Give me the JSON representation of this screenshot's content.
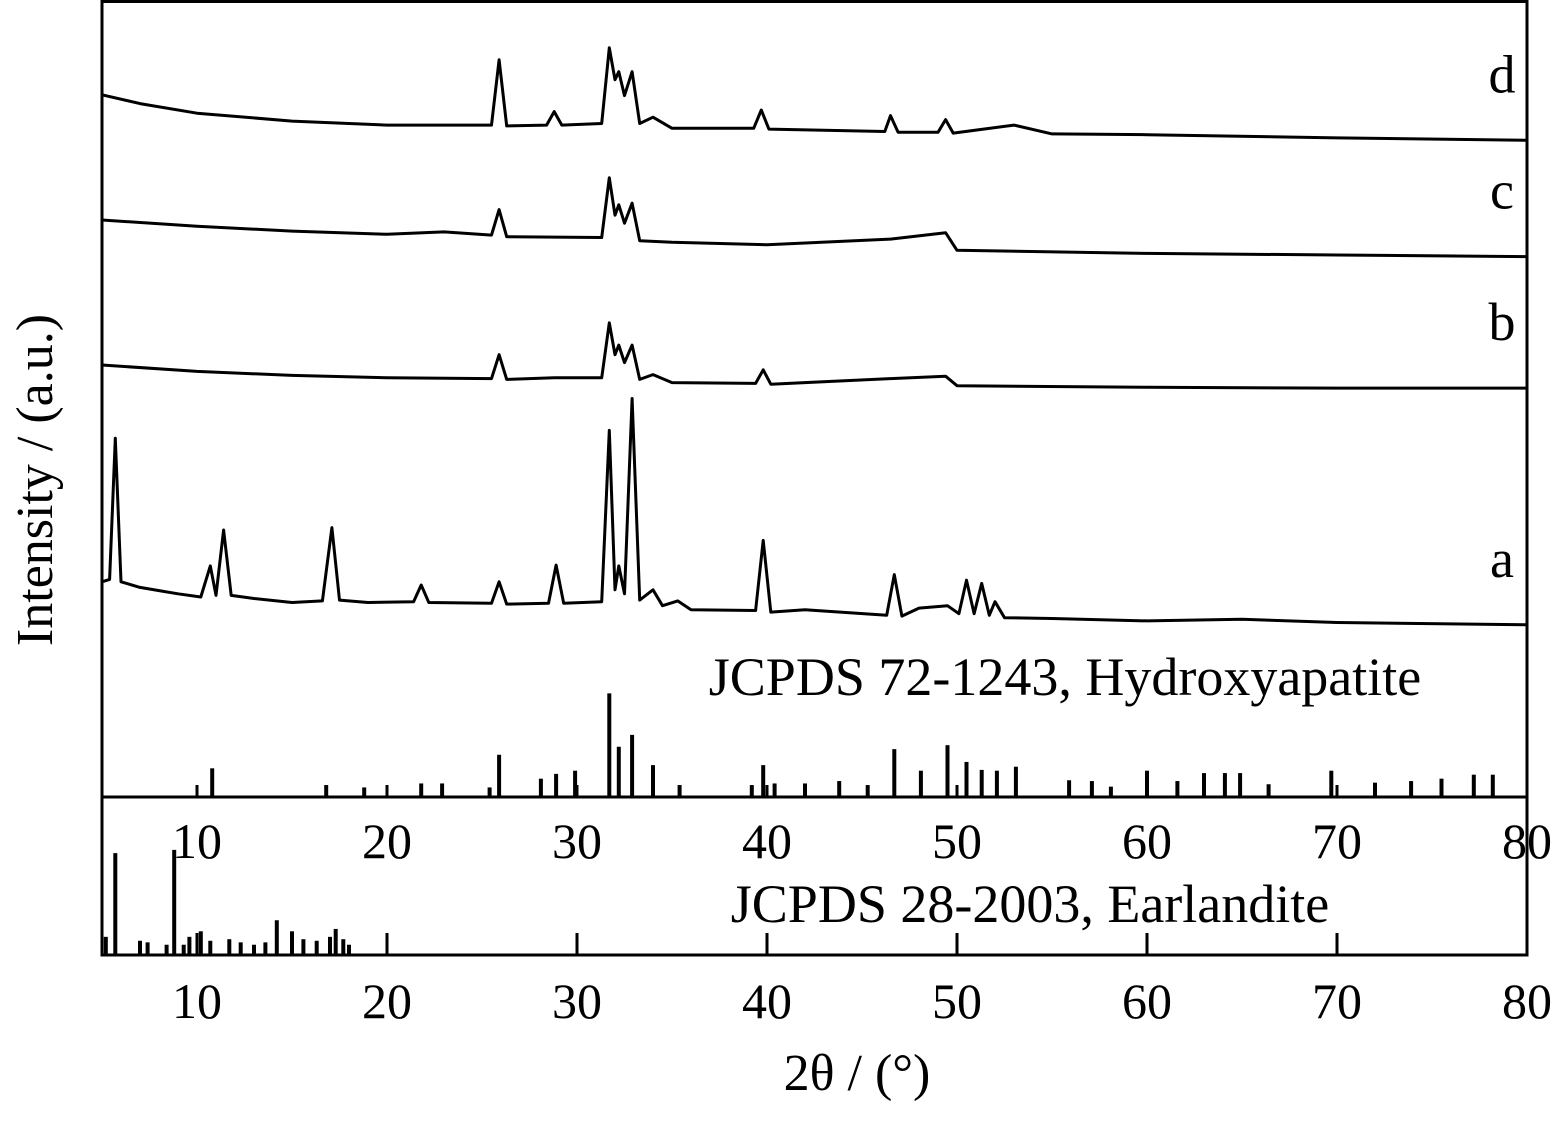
{
  "chart_data": [
    {
      "type": "line",
      "y_label": "Intensity / (a.u.)",
      "xlim": [
        5,
        80
      ],
      "xticks": [
        10,
        20,
        30,
        40,
        50,
        60,
        70,
        80
      ],
      "ylim": [
        0,
        100
      ],
      "series": [
        {
          "name": "a",
          "color": "#000000",
          "x": [
            5.0,
            5.4,
            5.7,
            6.0,
            7,
            8,
            9,
            10.2,
            10.7,
            11.0,
            11.4,
            11.8,
            13,
            15,
            16.6,
            17.1,
            17.5,
            19,
            21.4,
            21.8,
            22.2,
            25.5,
            25.9,
            26.3,
            28.5,
            28.9,
            29.3,
            31.3,
            31.7,
            32.0,
            32.2,
            32.5,
            32.9,
            33.3,
            34.0,
            34.5,
            35.3,
            36,
            39.4,
            39.8,
            40.2,
            42,
            46.3,
            46.7,
            47.1,
            48,
            49.5,
            50.1,
            50.5,
            50.9,
            51.3,
            51.7,
            52,
            52.5,
            55,
            60,
            65,
            70,
            80
          ],
          "values": [
            27.0,
            27.3,
            45.0,
            27.0,
            26.3,
            25.9,
            25.5,
            25.1,
            29.0,
            25.3,
            33.5,
            25.3,
            24.9,
            24.4,
            24.6,
            33.8,
            24.7,
            24.4,
            24.5,
            26.6,
            24.4,
            24.3,
            27.0,
            24.2,
            24.3,
            29.1,
            24.3,
            24.5,
            46.0,
            26.0,
            29.0,
            25.5,
            50.0,
            24.7,
            26.0,
            24.0,
            24.6,
            23.5,
            23.4,
            32.2,
            23.2,
            23.5,
            22.8,
            27.9,
            22.7,
            23.7,
            24.0,
            23.0,
            27.2,
            23.0,
            26.8,
            22.8,
            24.5,
            22.5,
            22.4,
            22.1,
            22.3,
            21.9,
            21.6
          ]
        },
        {
          "name": "b",
          "color": "#000000",
          "x": [
            5,
            10,
            15,
            20,
            25.5,
            25.9,
            26.3,
            28.8,
            31.3,
            31.7,
            32.0,
            32.2,
            32.5,
            32.9,
            33.3,
            34,
            35,
            39.4,
            39.8,
            40.2,
            46.5,
            49.4,
            50,
            60,
            70,
            80
          ],
          "values": [
            54.2,
            53.4,
            52.9,
            52.6,
            52.5,
            55.5,
            52.4,
            52.6,
            52.6,
            59.5,
            55.5,
            56.7,
            54.5,
            56.7,
            52.4,
            53.0,
            52.0,
            51.9,
            53.6,
            51.8,
            52.5,
            52.8,
            51.6,
            51.4,
            51.3,
            51.3
          ]
        },
        {
          "name": "c",
          "color": "#000000",
          "x": [
            5,
            10,
            15,
            20,
            23,
            25.5,
            25.9,
            26.3,
            31.3,
            31.7,
            32.0,
            32.2,
            32.5,
            32.9,
            33.3,
            35,
            40,
            46.5,
            49.4,
            50,
            60,
            70,
            80
          ],
          "values": [
            72.4,
            71.6,
            71.0,
            70.6,
            70.9,
            70.5,
            73.7,
            70.3,
            70.2,
            77.7,
            73.0,
            74.3,
            72.0,
            74.5,
            69.8,
            69.6,
            69.3,
            70.0,
            70.8,
            68.6,
            68.2,
            68.0,
            67.8
          ]
        },
        {
          "name": "d",
          "color": "#000000",
          "x": [
            5,
            7,
            10,
            15,
            20,
            25.5,
            25.9,
            26.3,
            28.4,
            28.8,
            29.2,
            31.3,
            31.7,
            32.0,
            32.2,
            32.5,
            32.9,
            33.3,
            34,
            35,
            39.3,
            39.7,
            40.1,
            46.2,
            46.5,
            46.9,
            49.0,
            49.4,
            49.8,
            53,
            55,
            60,
            70,
            80
          ],
          "values": [
            88.1,
            87.0,
            85.8,
            84.8,
            84.3,
            84.3,
            92.5,
            84.2,
            84.3,
            86.0,
            84.3,
            84.5,
            94.0,
            90.0,
            91.0,
            88.0,
            91.0,
            84.5,
            85.3,
            83.9,
            83.9,
            86.2,
            83.8,
            83.5,
            85.5,
            83.4,
            83.4,
            85.0,
            83.3,
            84.3,
            83.2,
            83.1,
            82.7,
            82.4
          ]
        }
      ],
      "reference": {
        "label": "JCPDS 72-1243, Hydroxyapatite",
        "color": "#000000",
        "x": [
          10.8,
          16.8,
          18.8,
          21.8,
          22.9,
          25.4,
          25.9,
          28.1,
          28.9,
          29.9,
          31.7,
          32.2,
          32.9,
          34.0,
          35.4,
          39.2,
          39.8,
          40.4,
          42.0,
          43.8,
          45.3,
          46.7,
          48.1,
          49.5,
          50.5,
          51.3,
          52.1,
          53.1,
          55.9,
          57.1,
          58.1,
          60.0,
          61.6,
          63.0,
          64.1,
          64.9,
          66.4,
          69.7,
          72.0,
          73.9,
          75.5,
          77.2,
          78.2
        ],
        "values": [
          3.6,
          1.5,
          1.2,
          1.7,
          1.7,
          1.2,
          5.3,
          2.3,
          2.9,
          3.3,
          13.0,
          6.3,
          7.8,
          4.0,
          1.5,
          1.5,
          4.0,
          1.7,
          1.7,
          2.0,
          1.5,
          6.0,
          3.3,
          6.5,
          4.4,
          3.4,
          3.3,
          3.8,
          2.1,
          2.0,
          1.3,
          3.3,
          2.0,
          3.0,
          3.0,
          3.0,
          1.6,
          3.3,
          1.8,
          2.0,
          2.3,
          2.8,
          2.8
        ]
      }
    },
    {
      "type": "stick",
      "x_label": "2θ / (°)",
      "xlim": [
        5,
        80
      ],
      "xticks": [
        10,
        20,
        30,
        40,
        50,
        60,
        70,
        80
      ],
      "ylim": [
        0,
        20
      ],
      "reference": {
        "label": "JCPDS 28-2003, Earlandite",
        "color": "#000000",
        "x": [
          5.2,
          5.7,
          7.0,
          7.4,
          8.4,
          8.8,
          9.3,
          9.6,
          10.2,
          10.7,
          11.7,
          12.3,
          13.0,
          13.6,
          14.2,
          15.0,
          15.6,
          16.3,
          17.0,
          17.3,
          17.7,
          18.0
        ],
        "values": [
          2.3,
          12.9,
          1.8,
          1.6,
          1.3,
          13.3,
          1.3,
          2.3,
          3.0,
          1.8,
          2.0,
          1.6,
          1.3,
          1.6,
          4.4,
          3.0,
          2.0,
          1.8,
          2.3,
          3.3,
          2.0,
          1.3
        ]
      }
    }
  ]
}
